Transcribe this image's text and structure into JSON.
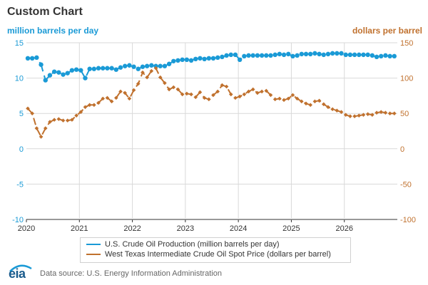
{
  "chart_data": {
    "type": "line",
    "title": "Custom Chart",
    "left_axis_label": "million barrels per day",
    "right_axis_label": "dollars per barrel",
    "left_ylim": [
      -10,
      15
    ],
    "right_ylim": [
      -100,
      150
    ],
    "left_ticks": [
      "15",
      "10",
      "5",
      "0",
      "-5",
      "-10"
    ],
    "right_ticks": [
      "150",
      "100",
      "50",
      "0",
      "-50",
      "-100"
    ],
    "x_ticks": [
      "2020",
      "2021",
      "2022",
      "2023",
      "2024",
      "2025",
      "2026"
    ],
    "xlim": [
      2020,
      2027
    ],
    "series": [
      {
        "name": "U.S. Crude Oil Production (million barrels per day)",
        "axis": "left",
        "color": "#1a9ad6",
        "values": [
          12.8,
          12.8,
          12.9,
          11.9,
          9.7,
          10.4,
          10.9,
          10.8,
          10.5,
          10.7,
          11.1,
          11.2,
          11.1,
          10.0,
          11.3,
          11.3,
          11.4,
          11.4,
          11.4,
          11.4,
          11.2,
          11.5,
          11.7,
          11.8,
          11.6,
          11.3,
          11.6,
          11.7,
          11.8,
          11.7,
          11.7,
          11.7,
          12.0,
          12.4,
          12.5,
          12.6,
          12.6,
          12.5,
          12.7,
          12.8,
          12.7,
          12.8,
          12.8,
          12.9,
          13.0,
          13.2,
          13.3,
          13.3,
          12.6,
          13.1,
          13.2,
          13.2,
          13.2,
          13.2,
          13.2,
          13.2,
          13.3,
          13.4,
          13.3,
          13.4,
          13.1,
          13.2,
          13.4,
          13.4,
          13.4,
          13.5,
          13.4,
          13.3,
          13.4,
          13.5,
          13.5,
          13.5,
          13.3,
          13.3,
          13.3,
          13.3,
          13.3,
          13.3,
          13.2,
          13.0,
          13.1,
          13.2,
          13.1,
          13.1
        ]
      },
      {
        "name": "West Texas Intermediate Crude Oil Spot Price (dollars per barrel)",
        "axis": "right",
        "color": "#c0712e",
        "values": [
          57,
          50,
          29,
          17,
          29,
          38,
          41,
          42,
          40,
          40,
          41,
          47,
          52,
          59,
          62,
          62,
          65,
          71,
          72,
          67,
          72,
          81,
          79,
          71,
          83,
          92,
          108,
          101,
          110,
          114,
          101,
          93,
          84,
          87,
          84,
          77,
          78,
          77,
          73,
          80,
          72,
          70,
          76,
          81,
          90,
          88,
          77,
          72,
          74,
          77,
          81,
          84,
          79,
          81,
          82,
          76,
          70,
          71,
          69,
          71,
          76,
          71,
          67,
          64,
          62,
          67,
          68,
          63,
          59,
          56,
          54,
          52,
          48,
          46,
          46,
          47,
          48,
          49,
          48,
          51,
          52,
          51,
          50,
          50
        ]
      }
    ]
  },
  "legend": {
    "item1": "U.S. Crude Oil Production (million barrels per day)",
    "item2": "West Texas Intermediate Crude Oil Spot Price (dollars per barrel)"
  },
  "footer": {
    "logo": "eia",
    "source": "Data source: U.S. Energy Information Administration"
  },
  "colors": {
    "blue": "#1a9ad6",
    "orange": "#c0712e",
    "title": "#333333"
  }
}
